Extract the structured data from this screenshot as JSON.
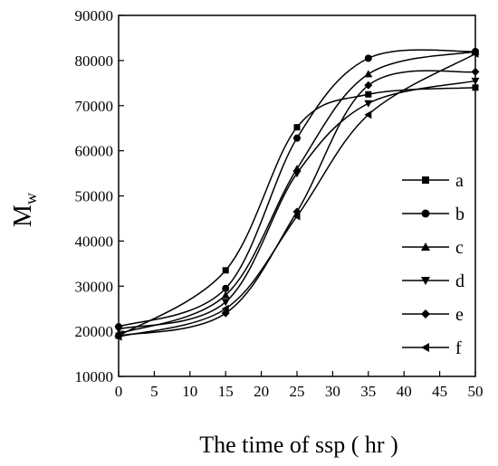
{
  "chart_data": {
    "type": "line",
    "xlabel": "The time of ssp ( hr )",
    "ylabel_main": "M",
    "ylabel_sub": "w",
    "xlim": [
      0,
      50
    ],
    "ylim": [
      10000,
      90000
    ],
    "x_ticks": [
      0,
      5,
      10,
      15,
      20,
      25,
      30,
      35,
      40,
      45,
      50
    ],
    "y_ticks": [
      10000,
      20000,
      30000,
      40000,
      50000,
      60000,
      70000,
      80000,
      90000
    ],
    "grid": false,
    "legend_position": "right",
    "series": [
      {
        "name": "a",
        "marker": "square",
        "x": [
          0,
          15,
          25,
          35,
          50
        ],
        "y": [
          19000,
          33500,
          65200,
          72500,
          74000
        ]
      },
      {
        "name": "b",
        "marker": "circle",
        "x": [
          0,
          15,
          25,
          35,
          50
        ],
        "y": [
          21000,
          29500,
          62800,
          80500,
          82000
        ]
      },
      {
        "name": "c",
        "marker": "triangle-up",
        "x": [
          0,
          15,
          25,
          35,
          50
        ],
        "y": [
          19500,
          28000,
          56000,
          77000,
          82000
        ]
      },
      {
        "name": "d",
        "marker": "triangle-down",
        "x": [
          0,
          15,
          25,
          35,
          50
        ],
        "y": [
          20500,
          26500,
          55000,
          70500,
          75500
        ]
      },
      {
        "name": "e",
        "marker": "diamond",
        "x": [
          0,
          15,
          25,
          35,
          50
        ],
        "y": [
          19000,
          24000,
          46500,
          74500,
          77500
        ]
      },
      {
        "name": "f",
        "marker": "triangle-left",
        "x": [
          0,
          15,
          25,
          35,
          50
        ],
        "y": [
          18800,
          25000,
          45500,
          68000,
          81500
        ]
      }
    ]
  }
}
